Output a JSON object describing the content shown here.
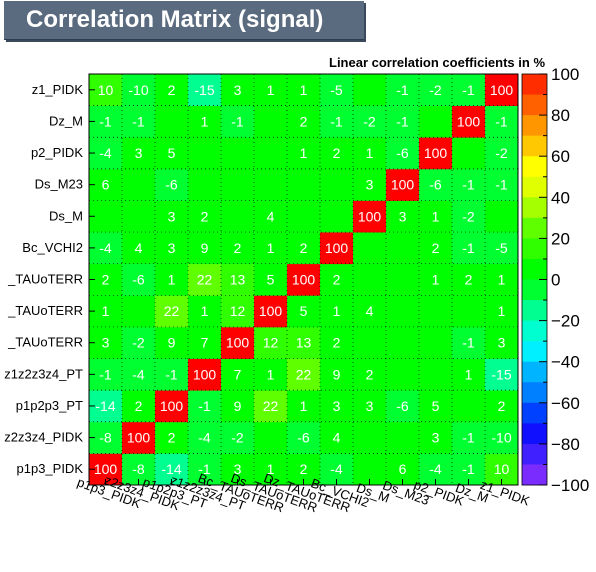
{
  "title": "Correlation Matrix (signal)",
  "chart_data": {
    "type": "heatmap",
    "subtitle": "Linear correlation coefficients in %",
    "zlim": [
      -100,
      100
    ],
    "colorbar_ticks": [
      "100",
      "80",
      "60",
      "40",
      "20",
      "0",
      "−20",
      "−40",
      "−60",
      "−80",
      "−100"
    ],
    "variables": [
      "p1p3_PIDK",
      "z2z3z4_PIDK",
      "p1p2p3_PT",
      "z1z2z3z4_PT",
      "Bc_TAUoTERR",
      "Ds_TAUoTERR",
      "Dz_TAUoTERR",
      "Bc_VCHI2",
      "Ds_M",
      "Ds_M23",
      "p2_PIDK",
      "Dz_M",
      "z1_PIDK"
    ],
    "y_labels_visible": [
      "p1p3_PIDK",
      "z2z3z4_PIDK",
      "p1p2p3_PT",
      "z1z2z3z4_PT",
      "_TAUoTERR",
      "_TAUoTERR",
      "_TAUoTERR",
      "Bc_VCHI2",
      "Ds_M",
      "Ds_M23",
      "p2_PIDK",
      "Dz_M",
      "z1_PIDK"
    ],
    "values": [
      [
        100,
        -8,
        -14,
        -1,
        3,
        1,
        2,
        -4,
        0,
        6,
        -4,
        -1,
        10
      ],
      [
        -8,
        100,
        2,
        -4,
        -2,
        0,
        -6,
        4,
        0,
        0,
        3,
        -1,
        -10
      ],
      [
        -14,
        2,
        100,
        -1,
        9,
        22,
        1,
        3,
        3,
        -6,
        5,
        0,
        2
      ],
      [
        -1,
        -4,
        -1,
        100,
        7,
        1,
        22,
        9,
        2,
        0,
        0,
        1,
        -15
      ],
      [
        3,
        -2,
        9,
        7,
        100,
        12,
        13,
        2,
        0,
        0,
        0,
        -1,
        3
      ],
      [
        1,
        0,
        22,
        1,
        12,
        100,
        5,
        1,
        4,
        0,
        0,
        0,
        1
      ],
      [
        2,
        -6,
        1,
        22,
        13,
        5,
        100,
        2,
        0,
        0,
        1,
        2,
        1
      ],
      [
        -4,
        4,
        3,
        9,
        2,
        1,
        2,
        100,
        0,
        0,
        2,
        -1,
        -5
      ],
      [
        0,
        0,
        3,
        2,
        0,
        4,
        0,
        0,
        100,
        3,
        1,
        -2,
        0
      ],
      [
        6,
        0,
        -6,
        0,
        0,
        0,
        0,
        0,
        3,
        100,
        -6,
        -1,
        -1
      ],
      [
        -4,
        3,
        5,
        0,
        0,
        0,
        1,
        2,
        1,
        -6,
        100,
        0,
        -2
      ],
      [
        -1,
        -1,
        0,
        1,
        -1,
        0,
        2,
        -1,
        -2,
        -1,
        0,
        100,
        -1
      ],
      [
        10,
        -10,
        2,
        -15,
        3,
        1,
        1,
        -5,
        0,
        -1,
        -2,
        -1,
        100
      ]
    ]
  }
}
